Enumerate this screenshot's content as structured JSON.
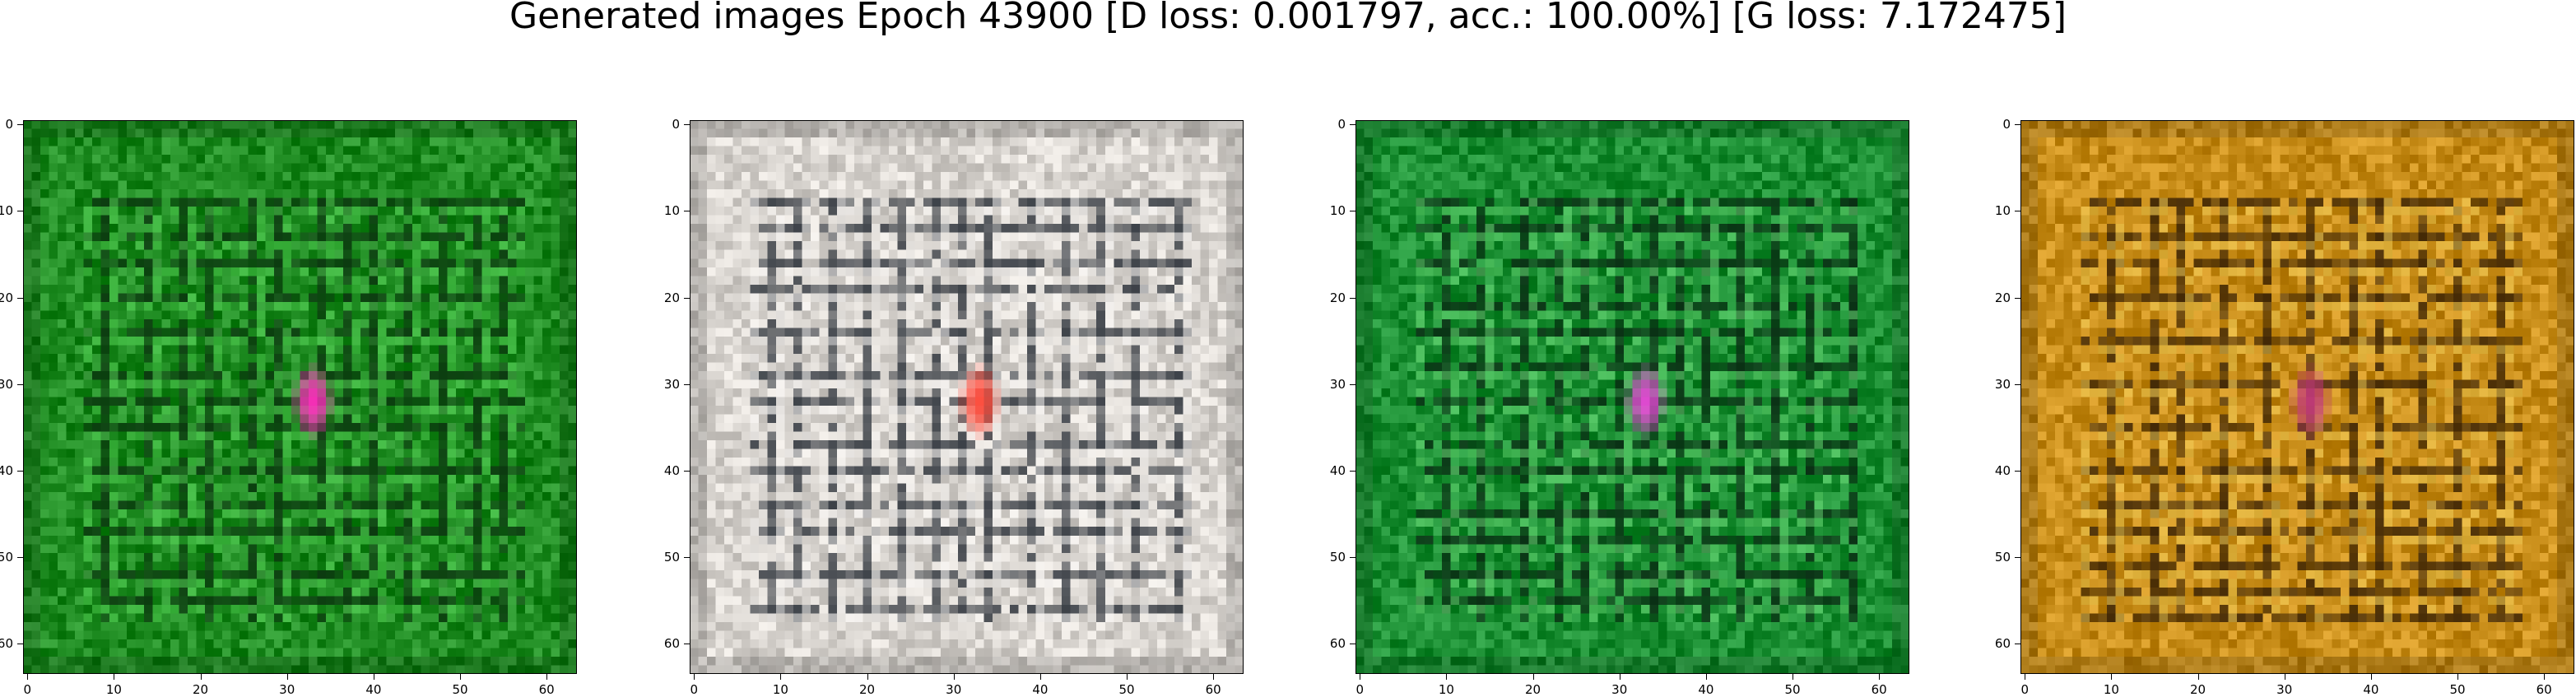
{
  "figure": {
    "title": "Generated images Epoch 43900 [D loss: 0.001797, acc.: 100.00%] [G loss: 7.172475]"
  },
  "axis": {
    "tick_labels": [
      "0",
      "10",
      "20",
      "30",
      "40",
      "50",
      "60"
    ],
    "ticks": [
      0,
      10,
      20,
      30,
      40,
      50,
      60
    ],
    "xlim": [
      -0.5,
      63.5
    ],
    "ylim": [
      63.5,
      -0.5
    ],
    "resolution": 64
  },
  "panels": [
    {
      "id": "panel-1",
      "base_color": "#1f8c22",
      "grid_color": "#0c3a10",
      "highlight_color": "#58d858",
      "blob_color": "#ff2dbe"
    },
    {
      "id": "panel-2",
      "base_color": "#d8d4cf",
      "grid_color": "#3a3f46",
      "highlight_color": "#f8f6f4",
      "blob_color": "#ff4a3a"
    },
    {
      "id": "panel-3",
      "base_color": "#1b8f33",
      "grid_color": "#0a2e14",
      "highlight_color": "#6fe07a",
      "blob_color": "#e84ad8"
    },
    {
      "id": "panel-4",
      "base_color": "#c98e1a",
      "grid_color": "#3f2606",
      "highlight_color": "#f2d05a",
      "blob_color": "#c23a7a"
    }
  ]
}
